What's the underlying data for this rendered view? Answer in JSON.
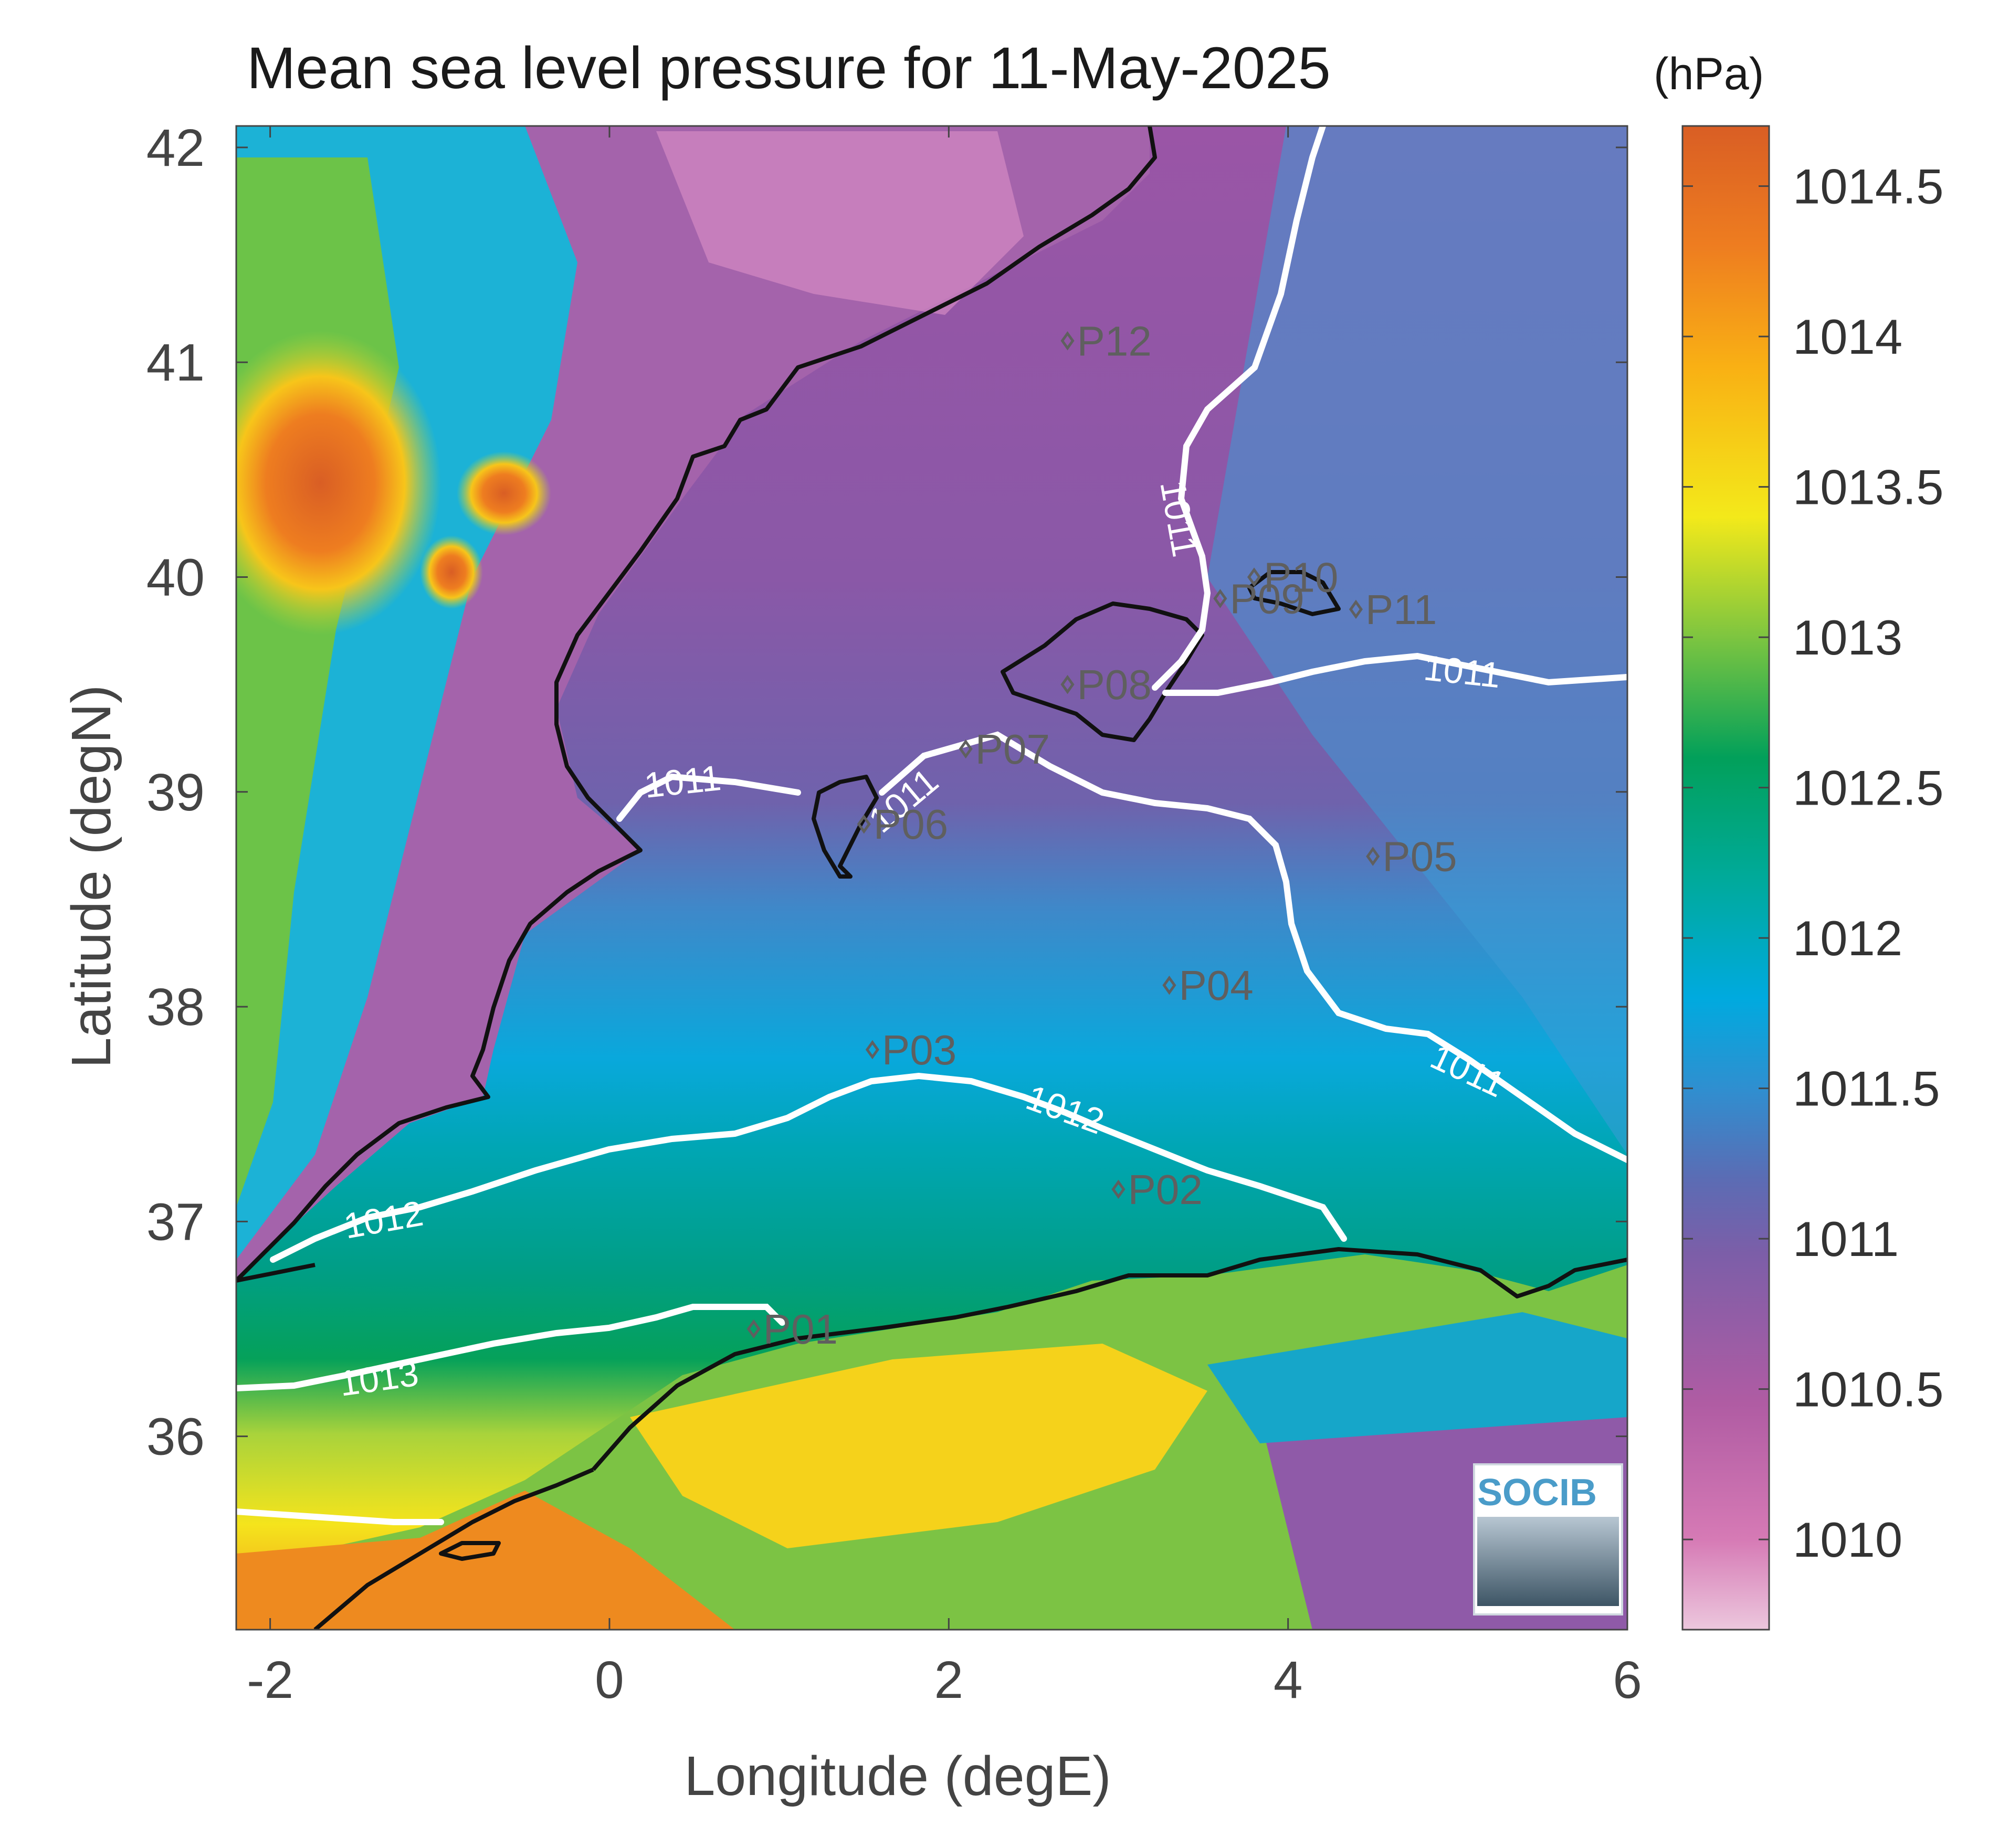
{
  "title": "Mean sea level pressure for 11-May-2025",
  "colorbar": {
    "unit": "(hPa)",
    "min": 1009.7,
    "max": 1014.7,
    "ticks": [
      "1010",
      "1010.5",
      "1011",
      "1011.5",
      "1012",
      "1012.5",
      "1013",
      "1013.5",
      "1014",
      "1014.5"
    ],
    "tick_values": [
      1010,
      1010.5,
      1011,
      1011.5,
      1012,
      1012.5,
      1013,
      1013.5,
      1014,
      1014.5
    ]
  },
  "map": {
    "xlabel": "Longitude (degE)",
    "ylabel": "Latitude (degN)",
    "xlim": [
      -2.2,
      6.0
    ],
    "ylim": [
      35.1,
      42.1
    ],
    "xticks": [
      "-2",
      "0",
      "2",
      "4",
      "6"
    ],
    "xtick_values": [
      -2,
      0,
      2,
      4,
      6
    ],
    "yticks": [
      "36",
      "37",
      "38",
      "39",
      "40",
      "41",
      "42"
    ],
    "ytick_values": [
      36,
      37,
      38,
      39,
      40,
      41,
      42
    ]
  },
  "contours": [
    {
      "level": "1011"
    },
    {
      "level": "1012"
    },
    {
      "level": "1013"
    }
  ],
  "stations": [
    {
      "name": "P01",
      "lon": 0.85,
      "lat": 36.5
    },
    {
      "name": "P02",
      "lon": 3.0,
      "lat": 37.15
    },
    {
      "name": "P03",
      "lon": 1.55,
      "lat": 37.8
    },
    {
      "name": "P04",
      "lon": 3.3,
      "lat": 38.1
    },
    {
      "name": "P05",
      "lon": 4.5,
      "lat": 38.7
    },
    {
      "name": "P06",
      "lon": 1.5,
      "lat": 38.85
    },
    {
      "name": "P07",
      "lon": 2.1,
      "lat": 39.2
    },
    {
      "name": "P08",
      "lon": 2.7,
      "lat": 39.5
    },
    {
      "name": "P09",
      "lon": 3.6,
      "lat": 39.9
    },
    {
      "name": "P10",
      "lon": 3.8,
      "lat": 40.0
    },
    {
      "name": "P11",
      "lon": 4.4,
      "lat": 39.85
    },
    {
      "name": "P12",
      "lon": 2.7,
      "lat": 41.1
    }
  ],
  "logo": {
    "text": "SOCIB"
  },
  "colors": {
    "land_coast": "#111111",
    "contour": "#ffffff",
    "station": "#5f5f5f"
  }
}
